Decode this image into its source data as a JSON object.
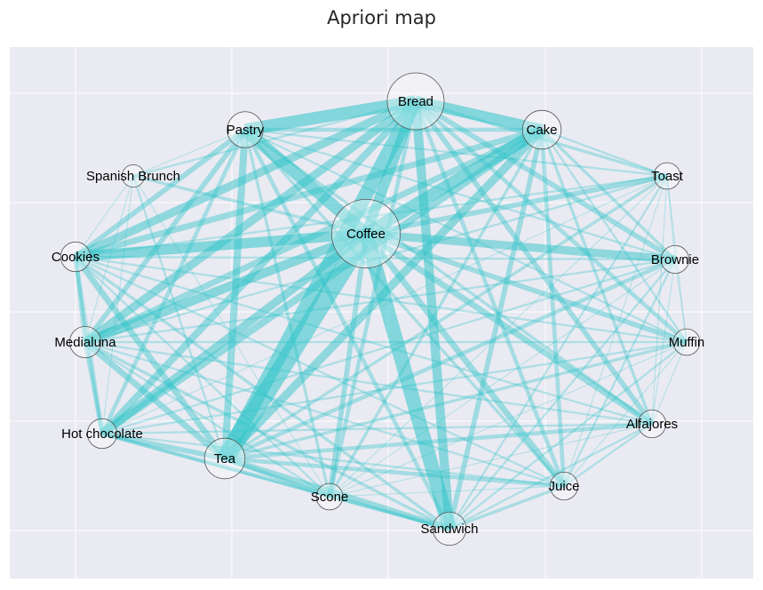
{
  "chart_data": {
    "type": "network",
    "title": "Apriori map",
    "grid": true,
    "colors": {
      "background": "#EAEAF2",
      "grid": "#FFFFFF",
      "edge": "#2EC4C8",
      "node_fill": "#FFFFFF",
      "node_stroke": "#555555"
    },
    "nodes": [
      {
        "id": "Bread",
        "label": "Bread",
        "weight": 1.0
      },
      {
        "id": "Cake",
        "label": "Cake",
        "weight": 0.35
      },
      {
        "id": "Toast",
        "label": "Toast",
        "weight": 0.1
      },
      {
        "id": "Brownie",
        "label": "Brownie",
        "weight": 0.12
      },
      {
        "id": "Muffin",
        "label": "Muffin",
        "weight": 0.1
      },
      {
        "id": "Alfajores",
        "label": "Alfajores",
        "weight": 0.12
      },
      {
        "id": "Juice",
        "label": "Juice",
        "weight": 0.12
      },
      {
        "id": "Sandwich",
        "label": "Sandwich",
        "weight": 0.22
      },
      {
        "id": "Scone",
        "label": "Scone",
        "weight": 0.1
      },
      {
        "id": "Tea",
        "label": "Tea",
        "weight": 0.4
      },
      {
        "id": "Hot chocolate",
        "label": "Hot chocolate",
        "weight": 0.15
      },
      {
        "id": "Medialuna",
        "label": "Medialuna",
        "weight": 0.18
      },
      {
        "id": "Cookies",
        "label": "Cookies",
        "weight": 0.15
      },
      {
        "id": "Spanish Brunch",
        "label": "Spanish Brunch",
        "weight": 0.05
      },
      {
        "id": "Pastry",
        "label": "Pastry",
        "weight": 0.28
      },
      {
        "id": "Coffee",
        "label": "Coffee",
        "weight": 1.6
      }
    ],
    "edges": [
      {
        "source": "Coffee",
        "target": "Tea",
        "weight": 18
      },
      {
        "source": "Coffee",
        "target": "Sandwich",
        "weight": 14
      },
      {
        "source": "Coffee",
        "target": "Cookies",
        "weight": 10
      },
      {
        "source": "Coffee",
        "target": "Pastry",
        "weight": 12
      },
      {
        "source": "Coffee",
        "target": "Cake",
        "weight": 12
      },
      {
        "source": "Coffee",
        "target": "Brownie",
        "weight": 8
      },
      {
        "source": "Coffee",
        "target": "Medialuna",
        "weight": 9
      },
      {
        "source": "Coffee",
        "target": "Hot chocolate",
        "weight": 8
      },
      {
        "source": "Coffee",
        "target": "Juice",
        "weight": 6
      },
      {
        "source": "Coffee",
        "target": "Scone",
        "weight": 5
      },
      {
        "source": "Coffee",
        "target": "Alfajores",
        "weight": 6
      },
      {
        "source": "Coffee",
        "target": "Muffin",
        "weight": 5
      },
      {
        "source": "Coffee",
        "target": "Toast",
        "weight": 5
      },
      {
        "source": "Coffee",
        "target": "Spanish Brunch",
        "weight": 3
      },
      {
        "source": "Bread",
        "target": "Tea",
        "weight": 14
      },
      {
        "source": "Bread",
        "target": "Pastry",
        "weight": 12
      },
      {
        "source": "Bread",
        "target": "Cake",
        "weight": 11
      },
      {
        "source": "Bread",
        "target": "Sandwich",
        "weight": 9
      },
      {
        "source": "Bread",
        "target": "Cookies",
        "weight": 8
      },
      {
        "source": "Bread",
        "target": "Medialuna",
        "weight": 8
      },
      {
        "source": "Bread",
        "target": "Hot chocolate",
        "weight": 7
      },
      {
        "source": "Bread",
        "target": "Coffee",
        "weight": 10
      },
      {
        "source": "Bread",
        "target": "Brownie",
        "weight": 5
      },
      {
        "source": "Bread",
        "target": "Alfajores",
        "weight": 5
      },
      {
        "source": "Bread",
        "target": "Juice",
        "weight": 4
      },
      {
        "source": "Bread",
        "target": "Scone",
        "weight": 4
      },
      {
        "source": "Bread",
        "target": "Muffin",
        "weight": 4
      },
      {
        "source": "Bread",
        "target": "Toast",
        "weight": 3
      },
      {
        "source": "Bread",
        "target": "Spanish Brunch",
        "weight": 2
      },
      {
        "source": "Cake",
        "target": "Tea",
        "weight": 8
      },
      {
        "source": "Cake",
        "target": "Hot chocolate",
        "weight": 7
      },
      {
        "source": "Cake",
        "target": "Cookies",
        "weight": 6
      },
      {
        "source": "Cake",
        "target": "Medialuna",
        "weight": 6
      },
      {
        "source": "Cake",
        "target": "Sandwich",
        "weight": 5
      },
      {
        "source": "Cake",
        "target": "Pastry",
        "weight": 4
      },
      {
        "source": "Cake",
        "target": "Juice",
        "weight": 4
      },
      {
        "source": "Cake",
        "target": "Alfajores",
        "weight": 3
      },
      {
        "source": "Cake",
        "target": "Scone",
        "weight": 3
      },
      {
        "source": "Cake",
        "target": "Brownie",
        "weight": 3
      },
      {
        "source": "Cake",
        "target": "Muffin",
        "weight": 2
      },
      {
        "source": "Cake",
        "target": "Toast",
        "weight": 2
      },
      {
        "source": "Pastry",
        "target": "Tea",
        "weight": 7
      },
      {
        "source": "Pastry",
        "target": "Cookies",
        "weight": 5
      },
      {
        "source": "Pastry",
        "target": "Medialuna",
        "weight": 5
      },
      {
        "source": "Pastry",
        "target": "Sandwich",
        "weight": 4
      },
      {
        "source": "Pastry",
        "target": "Hot chocolate",
        "weight": 4
      },
      {
        "source": "Pastry",
        "target": "Juice",
        "weight": 3
      },
      {
        "source": "Pastry",
        "target": "Scone",
        "weight": 3
      },
      {
        "source": "Pastry",
        "target": "Alfajores",
        "weight": 3
      },
      {
        "source": "Pastry",
        "target": "Brownie",
        "weight": 2
      },
      {
        "source": "Pastry",
        "target": "Muffin",
        "weight": 2
      },
      {
        "source": "Pastry",
        "target": "Toast",
        "weight": 2
      },
      {
        "source": "Pastry",
        "target": "Spanish Brunch",
        "weight": 1
      },
      {
        "source": "Tea",
        "target": "Sandwich",
        "weight": 6
      },
      {
        "source": "Tea",
        "target": "Cookies",
        "weight": 6
      },
      {
        "source": "Tea",
        "target": "Medialuna",
        "weight": 6
      },
      {
        "source": "Tea",
        "target": "Hot chocolate",
        "weight": 5
      },
      {
        "source": "Tea",
        "target": "Scone",
        "weight": 4
      },
      {
        "source": "Tea",
        "target": "Juice",
        "weight": 4
      },
      {
        "source": "Tea",
        "target": "Alfajores",
        "weight": 4
      },
      {
        "source": "Tea",
        "target": "Brownie",
        "weight": 4
      },
      {
        "source": "Tea",
        "target": "Muffin",
        "weight": 3
      },
      {
        "source": "Tea",
        "target": "Toast",
        "weight": 3
      },
      {
        "source": "Tea",
        "target": "Spanish Brunch",
        "weight": 2
      },
      {
        "source": "Sandwich",
        "target": "Hot chocolate",
        "weight": 4
      },
      {
        "source": "Sandwich",
        "target": "Cookies",
        "weight": 3
      },
      {
        "source": "Sandwich",
        "target": "Medialuna",
        "weight": 3
      },
      {
        "source": "Sandwich",
        "target": "Juice",
        "weight": 3
      },
      {
        "source": "Sandwich",
        "target": "Scone",
        "weight": 2
      },
      {
        "source": "Sandwich",
        "target": "Alfajores",
        "weight": 2
      },
      {
        "source": "Sandwich",
        "target": "Brownie",
        "weight": 2
      },
      {
        "source": "Sandwich",
        "target": "Muffin",
        "weight": 2
      },
      {
        "source": "Sandwich",
        "target": "Toast",
        "weight": 2
      },
      {
        "source": "Cookies",
        "target": "Medialuna",
        "weight": 4
      },
      {
        "source": "Cookies",
        "target": "Hot chocolate",
        "weight": 4
      },
      {
        "source": "Cookies",
        "target": "Juice",
        "weight": 2
      },
      {
        "source": "Cookies",
        "target": "Alfajores",
        "weight": 2
      },
      {
        "source": "Cookies",
        "target": "Brownie",
        "weight": 2
      },
      {
        "source": "Cookies",
        "target": "Muffin",
        "weight": 2
      },
      {
        "source": "Cookies",
        "target": "Scone",
        "weight": 2
      },
      {
        "source": "Cookies",
        "target": "Toast",
        "weight": 2
      },
      {
        "source": "Cookies",
        "target": "Spanish Brunch",
        "weight": 1
      },
      {
        "source": "Medialuna",
        "target": "Hot chocolate",
        "weight": 4
      },
      {
        "source": "Medialuna",
        "target": "Juice",
        "weight": 2
      },
      {
        "source": "Medialuna",
        "target": "Alfajores",
        "weight": 2
      },
      {
        "source": "Medialuna",
        "target": "Brownie",
        "weight": 2
      },
      {
        "source": "Medialuna",
        "target": "Muffin",
        "weight": 2
      },
      {
        "source": "Medialuna",
        "target": "Scone",
        "weight": 2
      },
      {
        "source": "Medialuna",
        "target": "Toast",
        "weight": 2
      },
      {
        "source": "Medialuna",
        "target": "Spanish Brunch",
        "weight": 1
      },
      {
        "source": "Hot chocolate",
        "target": "Juice",
        "weight": 2
      },
      {
        "source": "Hot chocolate",
        "target": "Alfajores",
        "weight": 2
      },
      {
        "source": "Hot chocolate",
        "target": "Brownie",
        "weight": 2
      },
      {
        "source": "Hot chocolate",
        "target": "Muffin",
        "weight": 2
      },
      {
        "source": "Hot chocolate",
        "target": "Scone",
        "weight": 2
      },
      {
        "source": "Hot chocolate",
        "target": "Toast",
        "weight": 1
      },
      {
        "source": "Juice",
        "target": "Alfajores",
        "weight": 2
      },
      {
        "source": "Juice",
        "target": "Brownie",
        "weight": 2
      },
      {
        "source": "Juice",
        "target": "Muffin",
        "weight": 1
      },
      {
        "source": "Juice",
        "target": "Scone",
        "weight": 1
      },
      {
        "source": "Juice",
        "target": "Toast",
        "weight": 1
      },
      {
        "source": "Alfajores",
        "target": "Brownie",
        "weight": 1
      },
      {
        "source": "Alfajores",
        "target": "Muffin",
        "weight": 1
      },
      {
        "source": "Alfajores",
        "target": "Scone",
        "weight": 1
      },
      {
        "source": "Alfajores",
        "target": "Toast",
        "weight": 1
      },
      {
        "source": "Scone",
        "target": "Brownie",
        "weight": 1
      },
      {
        "source": "Scone",
        "target": "Muffin",
        "weight": 1
      },
      {
        "source": "Scone",
        "target": "Toast",
        "weight": 1
      },
      {
        "source": "Brownie",
        "target": "Muffin",
        "weight": 1
      },
      {
        "source": "Brownie",
        "target": "Toast",
        "weight": 1
      },
      {
        "source": "Muffin",
        "target": "Toast",
        "weight": 1
      },
      {
        "source": "Spanish Brunch",
        "target": "Scone",
        "weight": 1
      },
      {
        "source": "Spanish Brunch",
        "target": "Hot chocolate",
        "weight": 1
      }
    ]
  }
}
